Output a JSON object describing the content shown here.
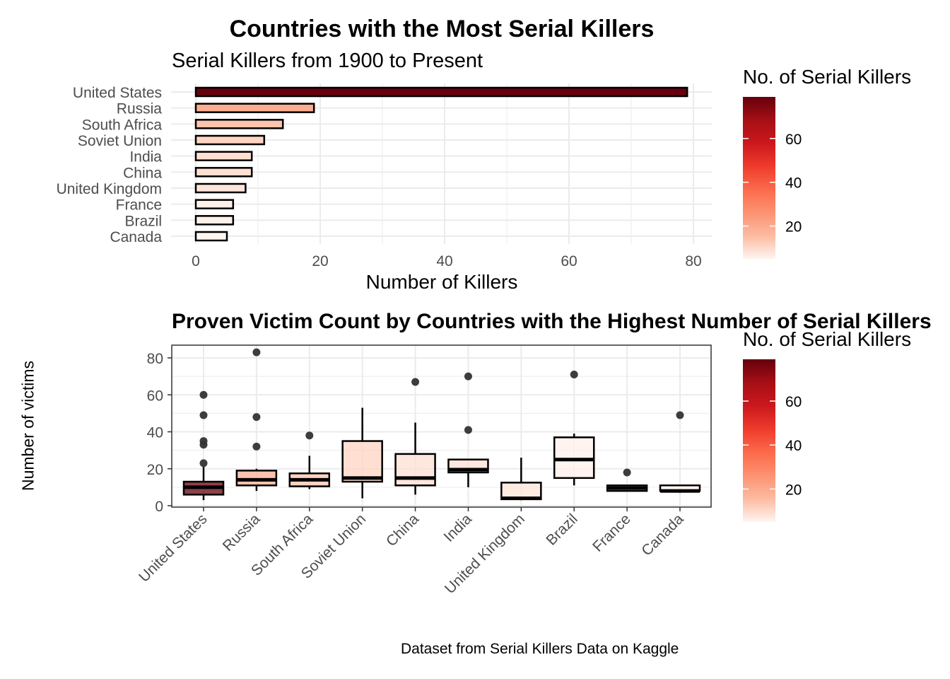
{
  "title": "Countries with the Most Serial Killers",
  "subtitle": "Serial Killers from 1900 to Present",
  "caption": "Dataset from Serial Killers Data on Kaggle",
  "colors": {
    "low": "#fff5f0",
    "high": "#67000d",
    "scale": [
      "#fff5f0",
      "#fcbba1",
      "#fc9272",
      "#fb6a4a",
      "#ef3b2c",
      "#cb181d",
      "#a50f15",
      "#67000d"
    ],
    "grid": "#ebebeb",
    "outline": "#000000",
    "outlier": "#333333"
  },
  "chart_data": [
    {
      "type": "bar",
      "orientation": "horizontal",
      "title": "Countries with the Most Serial Killers",
      "subtitle": "Serial Killers from 1900 to Present",
      "xlabel": "Number of Killers",
      "ylabel": "",
      "xlim": [
        0,
        83
      ],
      "xticks": [
        0,
        20,
        40,
        60,
        80
      ],
      "categories": [
        "United States",
        "Russia",
        "South Africa",
        "Soviet Union",
        "India",
        "China",
        "United Kingdom",
        "France",
        "Brazil",
        "Canada"
      ],
      "values": [
        79,
        19,
        14,
        11,
        9,
        9,
        8,
        6,
        6,
        5
      ],
      "grid": true,
      "legend": {
        "title": "No. of Serial Killers",
        "position": "right",
        "ticks": [
          20,
          40,
          60
        ],
        "range": [
          5,
          79
        ]
      }
    },
    {
      "type": "box",
      "title": "Proven Victim Count by Countries with the Highest Number of Serial Killers",
      "xlabel": "",
      "ylabel": "Number of victims",
      "ylim": [
        0,
        87
      ],
      "yticks": [
        0,
        20,
        40,
        60,
        80
      ],
      "grid": true,
      "legend": {
        "title": "No. of Serial Killers",
        "position": "right",
        "ticks": [
          20,
          40,
          60
        ],
        "range": [
          5,
          79
        ]
      },
      "series": [
        {
          "category": "United States",
          "killers": 79,
          "min": 3,
          "q1": 6,
          "median": 10,
          "q3": 13,
          "max": 21,
          "outliers": [
            23,
            33,
            35,
            49,
            60
          ]
        },
        {
          "category": "Russia",
          "killers": 19,
          "min": 8,
          "q1": 11,
          "median": 14,
          "q3": 19,
          "max": 20,
          "outliers": [
            32,
            48,
            83
          ]
        },
        {
          "category": "South Africa",
          "killers": 14,
          "min": 9,
          "q1": 10.5,
          "median": 14,
          "q3": 17.5,
          "max": 27,
          "outliers": [
            38
          ]
        },
        {
          "category": "Soviet Union",
          "killers": 11,
          "min": 4,
          "q1": 13,
          "median": 15,
          "q3": 35,
          "max": 53,
          "outliers": []
        },
        {
          "category": "China",
          "killers": 9,
          "min": 6,
          "q1": 11,
          "median": 15,
          "q3": 28,
          "max": 45,
          "outliers": [
            67
          ]
        },
        {
          "category": "India",
          "killers": 9,
          "min": 10,
          "q1": 18,
          "median": 19.5,
          "q3": 25,
          "max": 25,
          "outliers": [
            41,
            70
          ]
        },
        {
          "category": "United Kingdom",
          "killers": 8,
          "min": 3,
          "q1": 3.5,
          "median": 4,
          "q3": 12.5,
          "max": 26,
          "outliers": []
        },
        {
          "category": "Brazil",
          "killers": 6,
          "min": 11,
          "q1": 15,
          "median": 25,
          "q3": 37,
          "max": 39,
          "outliers": [
            71
          ]
        },
        {
          "category": "France",
          "killers": 6,
          "min": 8,
          "q1": 8,
          "median": 9.5,
          "q3": 11,
          "max": 11,
          "outliers": [
            18
          ]
        },
        {
          "category": "Canada",
          "killers": 5,
          "min": 7,
          "q1": 8,
          "median": 8,
          "q3": 11,
          "max": 11,
          "outliers": [
            49
          ]
        }
      ]
    }
  ]
}
